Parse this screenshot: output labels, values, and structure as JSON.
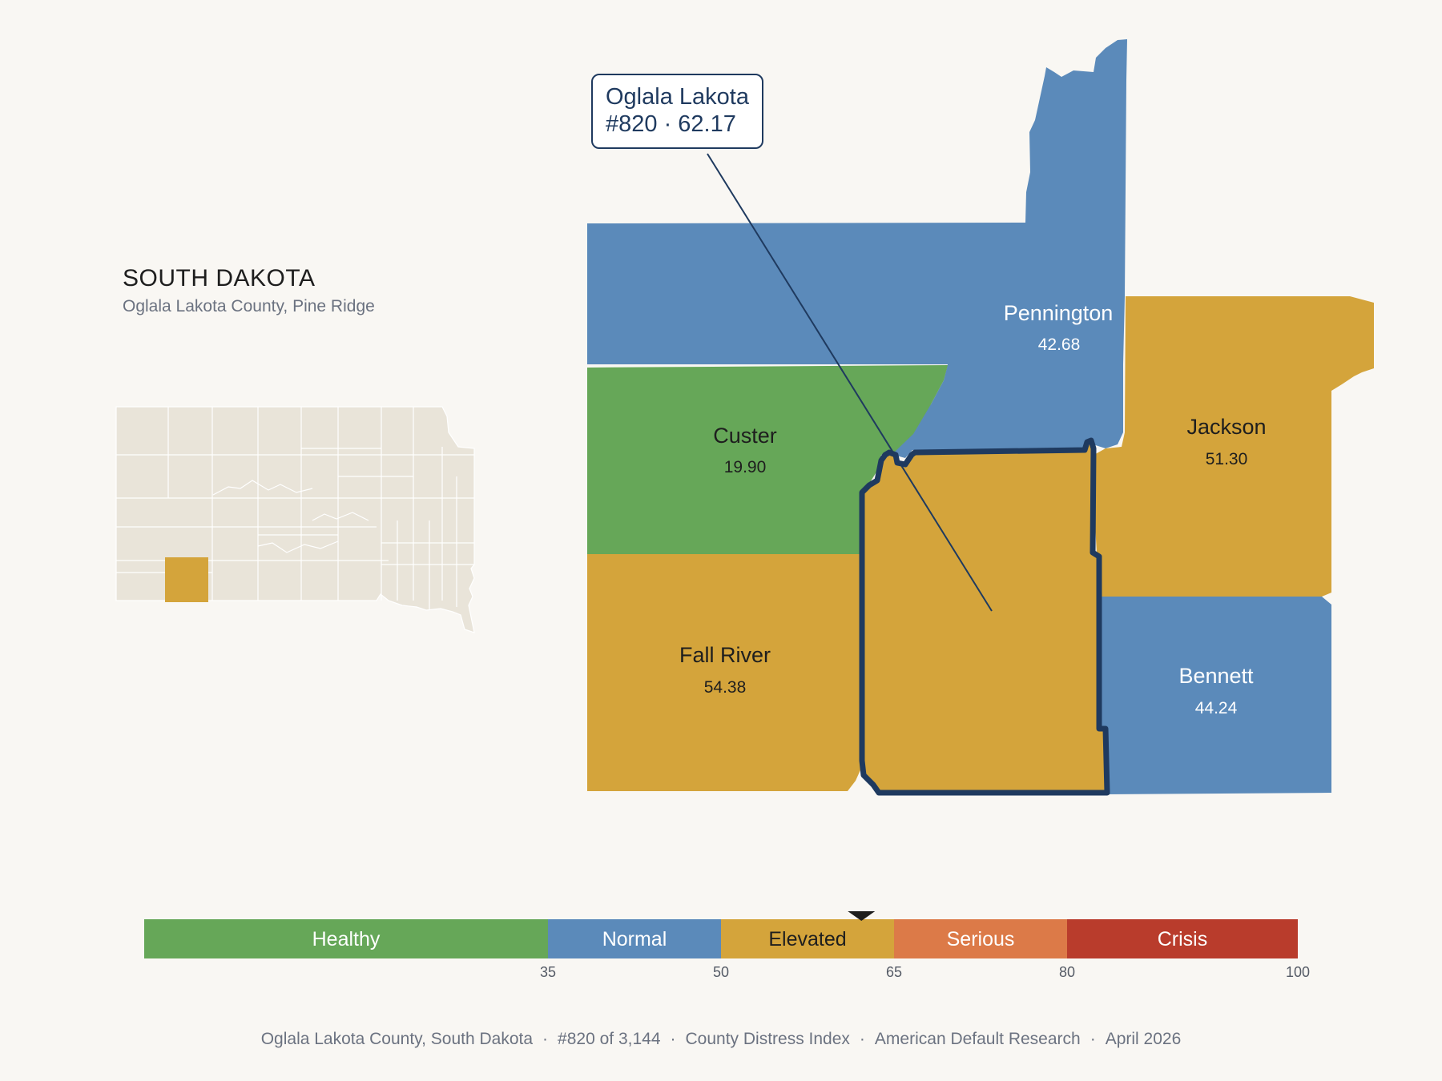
{
  "state": {
    "title": "SOUTH DAKOTA",
    "subtitle": "Oglala Lakota County, Pine Ridge"
  },
  "callout": {
    "line1": "Oglala Lakota",
    "line2": "#820 · 62.17"
  },
  "counties": {
    "pennington": {
      "name": "Pennington",
      "value": "42.68",
      "color": "#5b8aba"
    },
    "custer": {
      "name": "Custer",
      "value": "19.90",
      "color": "#66a758"
    },
    "jackson": {
      "name": "Jackson",
      "value": "51.30",
      "color": "#d4a43b"
    },
    "fall_river": {
      "name": "Fall River",
      "value": "54.38",
      "color": "#d4a43b"
    },
    "bennett": {
      "name": "Bennett",
      "value": "44.24",
      "color": "#5b8aba"
    },
    "oglala_lakota": {
      "name": "Oglala Lakota",
      "value": "62.17",
      "color": "#d4a43b",
      "outline": "#1f3a5f"
    }
  },
  "scale": {
    "min": 0,
    "max": 100,
    "indicator_value": 62.17,
    "segments": [
      {
        "label": "Healthy",
        "from": 0,
        "to": 35,
        "color": "#66a758",
        "text_color": "#ffffff"
      },
      {
        "label": "Normal",
        "from": 35,
        "to": 50,
        "color": "#5b8aba",
        "text_color": "#ffffff"
      },
      {
        "label": "Elevated",
        "from": 50,
        "to": 65,
        "color": "#d4a43b",
        "text_color": "#1e1e1e"
      },
      {
        "label": "Serious",
        "from": 65,
        "to": 80,
        "color": "#dc7a48",
        "text_color": "#ffffff"
      },
      {
        "label": "Crisis",
        "from": 80,
        "to": 100,
        "color": "#b93c2c",
        "text_color": "#ffffff"
      }
    ],
    "ticks": [
      "35",
      "50",
      "65",
      "80",
      "100"
    ]
  },
  "footer": {
    "items": [
      "Oglala Lakota County, South Dakota",
      "#820 of 3,144",
      "County Distress Index",
      "American Default Research",
      "April 2026"
    ]
  }
}
